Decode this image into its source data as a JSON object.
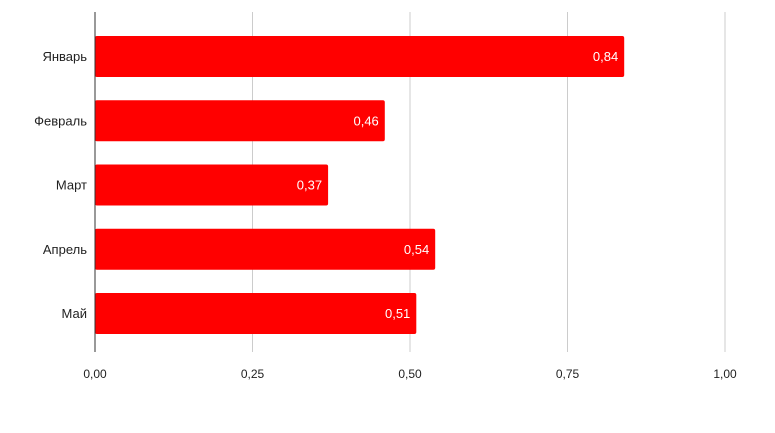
{
  "chart_data": {
    "type": "bar",
    "orientation": "horizontal",
    "categories": [
      "Январь",
      "Февраль",
      "Март",
      "Апрель",
      "Май"
    ],
    "values": [
      0.84,
      0.46,
      0.37,
      0.54,
      0.51
    ],
    "data_labels": [
      "0,84",
      "0,46",
      "0,37",
      "0,54",
      "0,51"
    ],
    "xlim": [
      0,
      1
    ],
    "x_ticks": [
      0,
      0.25,
      0.5,
      0.75,
      1
    ],
    "x_tick_labels": [
      "0,00",
      "0,25",
      "0,50",
      "0,75",
      "1,00"
    ],
    "grid": true,
    "bar_color": "#ff0000",
    "title": "",
    "xlabel": "",
    "ylabel": ""
  }
}
